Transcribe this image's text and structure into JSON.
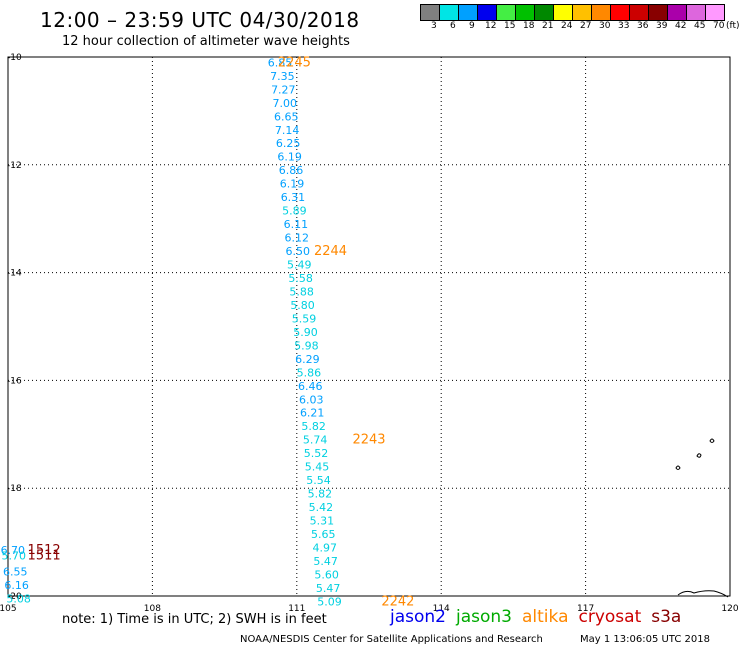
{
  "title": "12:00 – 23:59 UTC 04/30/2018",
  "subtitle": "12 hour collection of altimeter wave heights",
  "legend": {
    "unit": "(ft)",
    "bins": [
      {
        "label": "3",
        "color": "#808080"
      },
      {
        "label": "6",
        "color": "#00e5e5"
      },
      {
        "label": "9",
        "color": "#00a0ff"
      },
      {
        "label": "12",
        "color": "#0000ee"
      },
      {
        "label": "15",
        "color": "#44ee44"
      },
      {
        "label": "18",
        "color": "#00c000"
      },
      {
        "label": "21",
        "color": "#008800"
      },
      {
        "label": "24",
        "color": "#ffff00"
      },
      {
        "label": "27",
        "color": "#ffc000"
      },
      {
        "label": "30",
        "color": "#ff8800"
      },
      {
        "label": "33",
        "color": "#ff0000"
      },
      {
        "label": "36",
        "color": "#cc0000"
      },
      {
        "label": "39",
        "color": "#880000"
      },
      {
        "label": "42",
        "color": "#aa00aa"
      },
      {
        "label": "45",
        "color": "#dd66dd"
      },
      {
        "label": "70",
        "color": "#ff99ff"
      }
    ]
  },
  "map": {
    "lon_range": [
      105,
      120
    ],
    "lat_range": [
      -20,
      -10
    ],
    "lon_ticks": [
      "105",
      "108",
      "111",
      "114",
      "117",
      "120"
    ],
    "lat_ticks": [
      "-10",
      "-12",
      "-14",
      "-16",
      "-18",
      "-20"
    ],
    "grid": "dotted"
  },
  "observations": [
    {
      "lon": 110.65,
      "lat": -10.1,
      "value": "6.85",
      "color": "#00a0ff"
    },
    {
      "lon": 110.7,
      "lat": -10.35,
      "value": "7.35",
      "color": "#00a0ff"
    },
    {
      "lon": 110.72,
      "lat": -10.6,
      "value": "7.27",
      "color": "#00a0ff"
    },
    {
      "lon": 110.75,
      "lat": -10.85,
      "value": "7.00",
      "color": "#00a0ff"
    },
    {
      "lon": 110.78,
      "lat": -11.1,
      "value": "6.65",
      "color": "#00a0ff"
    },
    {
      "lon": 110.8,
      "lat": -11.35,
      "value": "7.14",
      "color": "#00a0ff"
    },
    {
      "lon": 110.82,
      "lat": -11.6,
      "value": "6.25",
      "color": "#00a0ff"
    },
    {
      "lon": 110.85,
      "lat": -11.85,
      "value": "6.19",
      "color": "#00a0ff"
    },
    {
      "lon": 110.88,
      "lat": -12.1,
      "value": "6.86",
      "color": "#00a0ff"
    },
    {
      "lon": 110.9,
      "lat": -12.35,
      "value": "6.19",
      "color": "#00a0ff"
    },
    {
      "lon": 110.92,
      "lat": -12.6,
      "value": "6.31",
      "color": "#00a0ff"
    },
    {
      "lon": 110.95,
      "lat": -12.85,
      "value": "5.89",
      "color": "#00d0e0"
    },
    {
      "lon": 110.98,
      "lat": -13.1,
      "value": "6.11",
      "color": "#00a0ff"
    },
    {
      "lon": 111.0,
      "lat": -13.35,
      "value": "6.12",
      "color": "#00a0ff"
    },
    {
      "lon": 111.02,
      "lat": -13.6,
      "value": "6.50",
      "color": "#00a0ff"
    },
    {
      "lon": 111.05,
      "lat": -13.85,
      "value": "5.49",
      "color": "#00d0e0"
    },
    {
      "lon": 111.08,
      "lat": -14.1,
      "value": "5.58",
      "color": "#00d0e0"
    },
    {
      "lon": 111.1,
      "lat": -14.35,
      "value": "5.88",
      "color": "#00d0e0"
    },
    {
      "lon": 111.12,
      "lat": -14.6,
      "value": "5.80",
      "color": "#00d0e0"
    },
    {
      "lon": 111.15,
      "lat": -14.85,
      "value": "5.59",
      "color": "#00d0e0"
    },
    {
      "lon": 111.18,
      "lat": -15.1,
      "value": "5.90",
      "color": "#00d0e0"
    },
    {
      "lon": 111.2,
      "lat": -15.35,
      "value": "5.98",
      "color": "#00d0e0"
    },
    {
      "lon": 111.22,
      "lat": -15.6,
      "value": "6.29",
      "color": "#00a0ff"
    },
    {
      "lon": 111.25,
      "lat": -15.85,
      "value": "5.86",
      "color": "#00d0e0"
    },
    {
      "lon": 111.28,
      "lat": -16.1,
      "value": "6.46",
      "color": "#00a0ff"
    },
    {
      "lon": 111.3,
      "lat": -16.35,
      "value": "6.03",
      "color": "#00a0ff"
    },
    {
      "lon": 111.32,
      "lat": -16.6,
      "value": "6.21",
      "color": "#00a0ff"
    },
    {
      "lon": 111.35,
      "lat": -16.85,
      "value": "5.82",
      "color": "#00d0e0"
    },
    {
      "lon": 111.38,
      "lat": -17.1,
      "value": "5.74",
      "color": "#00d0e0"
    },
    {
      "lon": 111.4,
      "lat": -17.35,
      "value": "5.52",
      "color": "#00d0e0"
    },
    {
      "lon": 111.42,
      "lat": -17.6,
      "value": "5.45",
      "color": "#00d0e0"
    },
    {
      "lon": 111.45,
      "lat": -17.85,
      "value": "5.54",
      "color": "#00d0e0"
    },
    {
      "lon": 111.48,
      "lat": -18.1,
      "value": "5.82",
      "color": "#00d0e0"
    },
    {
      "lon": 111.5,
      "lat": -18.35,
      "value": "5.42",
      "color": "#00d0e0"
    },
    {
      "lon": 111.52,
      "lat": -18.6,
      "value": "5.31",
      "color": "#00d0e0"
    },
    {
      "lon": 111.55,
      "lat": -18.85,
      "value": "5.65",
      "color": "#00d0e0"
    },
    {
      "lon": 111.58,
      "lat": -19.1,
      "value": "4.97",
      "color": "#00d0e0"
    },
    {
      "lon": 111.6,
      "lat": -19.35,
      "value": "5.47",
      "color": "#00d0e0"
    },
    {
      "lon": 111.62,
      "lat": -19.6,
      "value": "5.60",
      "color": "#00d0e0"
    },
    {
      "lon": 111.65,
      "lat": -19.85,
      "value": "5.47",
      "color": "#00d0e0"
    },
    {
      "lon": 111.68,
      "lat": -20.1,
      "value": "5.09",
      "color": "#00d0e0"
    },
    {
      "lon": 105.1,
      "lat": -19.15,
      "value": "6.70",
      "color": "#00a0ff"
    },
    {
      "lon": 105.12,
      "lat": -19.25,
      "value": "5.70",
      "color": "#00d0e0"
    },
    {
      "lon": 105.15,
      "lat": -19.55,
      "value": "6.55",
      "color": "#00a0ff"
    },
    {
      "lon": 105.18,
      "lat": -19.8,
      "value": "6.16",
      "color": "#00a0ff"
    },
    {
      "lon": 105.22,
      "lat": -20.05,
      "value": "5.08",
      "color": "#00d0e0"
    }
  ],
  "pass_labels": [
    {
      "lon": 110.95,
      "lat": -10.1,
      "text": "2245",
      "color": "#ff8800"
    },
    {
      "lon": 111.7,
      "lat": -13.6,
      "text": "2244",
      "color": "#ff8800"
    },
    {
      "lon": 112.5,
      "lat": -17.1,
      "text": "2243",
      "color": "#ff8800"
    },
    {
      "lon": 113.1,
      "lat": -20.1,
      "text": "2242",
      "color": "#ff8800"
    },
    {
      "lon": 105.75,
      "lat": -19.15,
      "text": "1512",
      "color": "#880000"
    },
    {
      "lon": 105.75,
      "lat": -19.25,
      "text": "1511",
      "color": "#880000"
    }
  ],
  "note": "note: 1) Time is in UTC; 2) SWH is in feet",
  "satellites": [
    {
      "name": "jason2",
      "color": "#0000ee"
    },
    {
      "name": "jason3",
      "color": "#00aa00"
    },
    {
      "name": "altika",
      "color": "#ff8800"
    },
    {
      "name": "cryosat",
      "color": "#cc0000"
    },
    {
      "name": "s3a",
      "color": "#880000"
    }
  ],
  "credit": "NOAA/NESDIS Center for Satellite Applications and Research",
  "generated": "May  1 13:06:05 UTC 2018"
}
